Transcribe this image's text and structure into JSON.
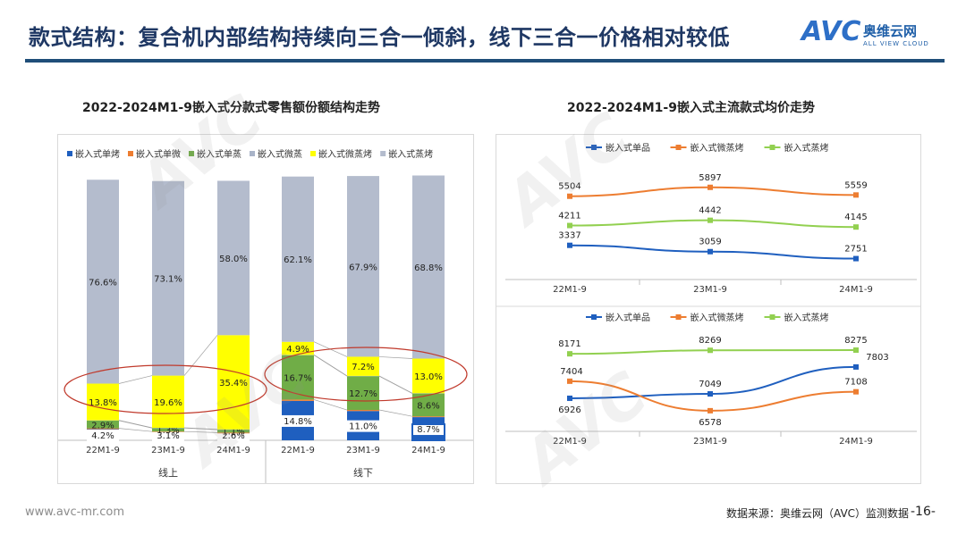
{
  "page": {
    "title": "款式结构：复合机内部结构持续向三合一倾斜，线下三合一价格相对较低",
    "logo_brand": "奥维云网",
    "logo_sub": "ALL VIEW CLOUD",
    "logo_mark": "AVC",
    "footer_url": "www.avc-mr.com",
    "footer_source": "数据来源：奥维云网（AVC）监测数据",
    "page_number": "-16-",
    "watermark": "AVC"
  },
  "chart_data": [
    {
      "type": "bar",
      "stacked": true,
      "title": "2022-2024M1-9嵌入式分款式零售额份额结构走势",
      "categories": [
        "22M1-9",
        "23M1-9",
        "24M1-9",
        "22M1-9",
        "23M1-9",
        "24M1-9"
      ],
      "groups": [
        "线上",
        "线下"
      ],
      "series": [
        {
          "name": "嵌入式单烤",
          "color": "#1f5fbf",
          "values": [
            4.2,
            3.1,
            2.6,
            14.8,
            11.0,
            8.7
          ],
          "labels": [
            "4.2%",
            "3.1%",
            "2.6%",
            "14.8%",
            "11.0%",
            "8.7%"
          ]
        },
        {
          "name": "嵌入式单微",
          "color": "#ed7d31",
          "values": [
            0.3,
            0.2,
            0.3,
            0.5,
            0.4,
            0.3
          ],
          "labels": [
            "",
            "",
            "",
            "",
            "",
            ""
          ]
        },
        {
          "name": "嵌入式单蒸",
          "color": "#70ad47",
          "values": [
            2.9,
            1.3,
            1.1,
            16.7,
            12.7,
            8.6
          ],
          "labels": [
            "2.9%",
            "1.3%",
            "1.1%",
            "16.7%",
            "12.7%",
            "8.6%"
          ]
        },
        {
          "name": "嵌入式微蒸",
          "color": "#a9b4c8",
          "values": [
            0.1,
            0.1,
            0.1,
            0.1,
            0.1,
            0.1
          ],
          "labels": [
            "",
            "",
            "",
            "",
            "",
            ""
          ]
        },
        {
          "name": "嵌入式微蒸烤",
          "color": "#ffff00",
          "values": [
            13.8,
            19.6,
            35.4,
            4.9,
            7.2,
            13.0
          ],
          "labels": [
            "13.8%",
            "19.6%",
            "35.4%",
            "4.9%",
            "7.2%",
            "13.0%"
          ]
        },
        {
          "name": "嵌入式蒸烤",
          "color": "#b4bccd",
          "values": [
            76.6,
            73.1,
            58.0,
            62.1,
            67.9,
            68.8
          ],
          "labels": [
            "76.6%",
            "73.1%",
            "58.0%",
            "62.1%",
            "67.9%",
            "68.8%"
          ]
        }
      ],
      "ylim": [
        0,
        100
      ],
      "unit": "%"
    },
    {
      "type": "line",
      "title": "2022-2024M1-9嵌入式主流款式均价走势",
      "subtitle": "线上",
      "categories": [
        "22M1-9",
        "23M1-9",
        "24M1-9"
      ],
      "series": [
        {
          "name": "嵌入式单品",
          "color": "#1f5fbf",
          "values": [
            3337,
            3059,
            2751
          ]
        },
        {
          "name": "嵌入式微蒸烤",
          "color": "#ed7d31",
          "values": [
            5504,
            5897,
            5559
          ]
        },
        {
          "name": "嵌入式蒸烤",
          "color": "#92d050",
          "values": [
            4211,
            4442,
            4145
          ]
        }
      ],
      "ylim": [
        2300,
        6400
      ]
    },
    {
      "type": "line",
      "subtitle": "线下",
      "categories": [
        "22M1-9",
        "23M1-9",
        "24M1-9"
      ],
      "series": [
        {
          "name": "嵌入式单品",
          "color": "#1f5fbf",
          "values": [
            6926,
            7049,
            7803
          ]
        },
        {
          "name": "嵌入式微蒸烤",
          "color": "#ed7d31",
          "values": [
            7404,
            6578,
            7108
          ]
        },
        {
          "name": "嵌入式蒸烤",
          "color": "#92d050",
          "values": [
            8171,
            8269,
            8275
          ]
        }
      ],
      "ylim": [
        6300,
        8500
      ]
    }
  ]
}
